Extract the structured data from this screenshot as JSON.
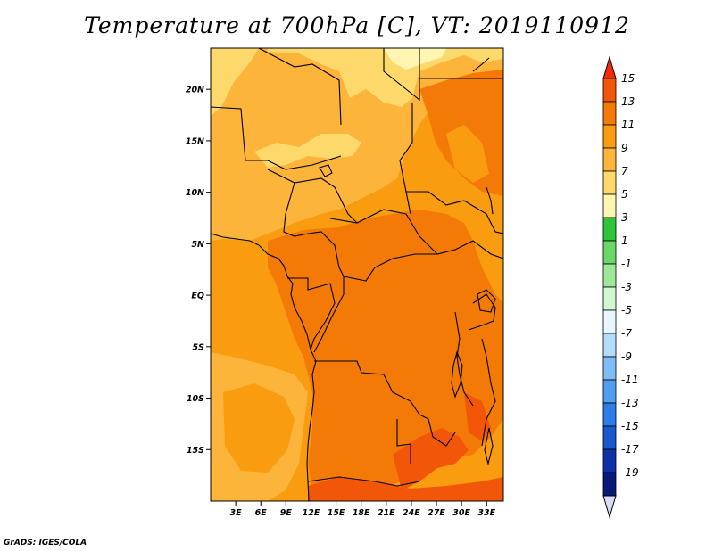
{
  "title": "Temperature at 700hPa [C], VT: 2019110912",
  "credit": "GrADS: IGES/COLA",
  "map": {
    "variable": "Temperature",
    "level": "700hPa",
    "units": "C",
    "valid_time": "2019110912",
    "lon_range": [
      0,
      35
    ],
    "lat_range": [
      -20,
      24
    ],
    "lat_ticks": [
      {
        "value": 20,
        "label": "20N"
      },
      {
        "value": 15,
        "label": "15N"
      },
      {
        "value": 10,
        "label": "10N"
      },
      {
        "value": 5,
        "label": "5N"
      },
      {
        "value": 0,
        "label": "EQ"
      },
      {
        "value": -5,
        "label": "5S"
      },
      {
        "value": -10,
        "label": "10S"
      },
      {
        "value": -15,
        "label": "15S"
      }
    ],
    "lon_ticks": [
      {
        "value": 3,
        "label": "3E"
      },
      {
        "value": 6,
        "label": "6E"
      },
      {
        "value": 9,
        "label": "9E"
      },
      {
        "value": 12,
        "label": "12E"
      },
      {
        "value": 15,
        "label": "15E"
      },
      {
        "value": 18,
        "label": "18E"
      },
      {
        "value": 21,
        "label": "21E"
      },
      {
        "value": 24,
        "label": "24E"
      },
      {
        "value": 27,
        "label": "27E"
      },
      {
        "value": 30,
        "label": "30E"
      },
      {
        "value": 33,
        "label": "33E"
      }
    ]
  },
  "colorbar": {
    "labels": [
      "15",
      "13",
      "11",
      "9",
      "7",
      "5",
      "3",
      "1",
      "-1",
      "-3",
      "-5",
      "-7",
      "-9",
      "-11",
      "-13",
      "-15",
      "-17",
      "-19"
    ],
    "colors": [
      "#f4280a",
      "#f25608",
      "#f47a08",
      "#f99c10",
      "#fcb43a",
      "#fdd86a",
      "#fef6b0",
      "#2fc43a",
      "#6ad766",
      "#a0e79a",
      "#d2f5d2",
      "#e8f6ff",
      "#b4dcfa",
      "#7fbef4",
      "#4f9ef0",
      "#2c7de8",
      "#1a56cc",
      "#0e31a8",
      "#0a1878",
      "#d8dcf6"
    ]
  }
}
